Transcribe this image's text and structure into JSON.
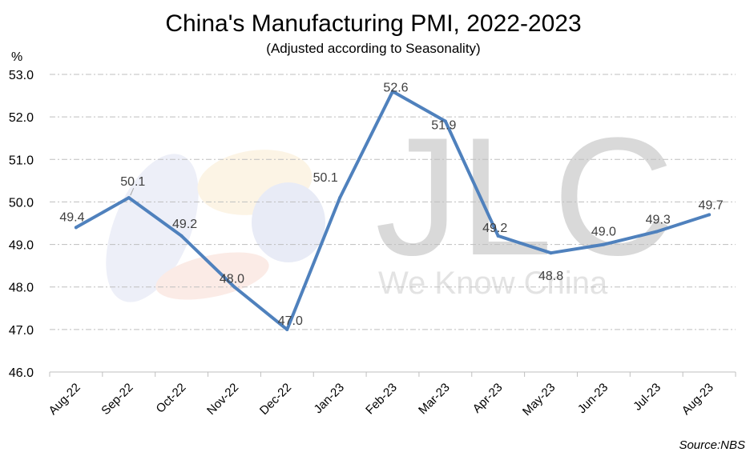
{
  "chart_data": {
    "type": "line",
    "title": "China's Manufacturing PMI, 2022-2023",
    "subtitle": "(Adjusted according to Seasonality)",
    "ylabel": "%",
    "xlabel": "",
    "ylim": [
      46.0,
      53.0
    ],
    "yticks": [
      "46.0",
      "47.0",
      "48.0",
      "49.0",
      "50.0",
      "51.0",
      "52.0",
      "53.0"
    ],
    "categories": [
      "Aug-22",
      "Sep-22",
      "Oct-22",
      "Nov-22",
      "Dec-22",
      "Jan-23",
      "Feb-23",
      "Mar-23",
      "Apr-23",
      "May-23",
      "Jun-23",
      "Jul-23",
      "Aug-23"
    ],
    "series": [
      {
        "values": [
          49.4,
          50.1,
          49.2,
          48.0,
          47.0,
          50.1,
          52.6,
          51.9,
          49.2,
          48.8,
          49.0,
          49.3,
          49.7
        ],
        "labels": [
          "49.4",
          "50.1",
          "49.2",
          "48.0",
          "47.0",
          "50.1",
          "52.6",
          "51.9",
          "49.2",
          "48.8",
          "49.0",
          "49.3",
          "49.7"
        ],
        "color": "#4f81bd"
      }
    ],
    "grid": "horizontal dashed",
    "legend": "none",
    "source": "Source:NBS"
  },
  "watermark": {
    "brand": "JLC",
    "tagline": "We Know China"
  }
}
